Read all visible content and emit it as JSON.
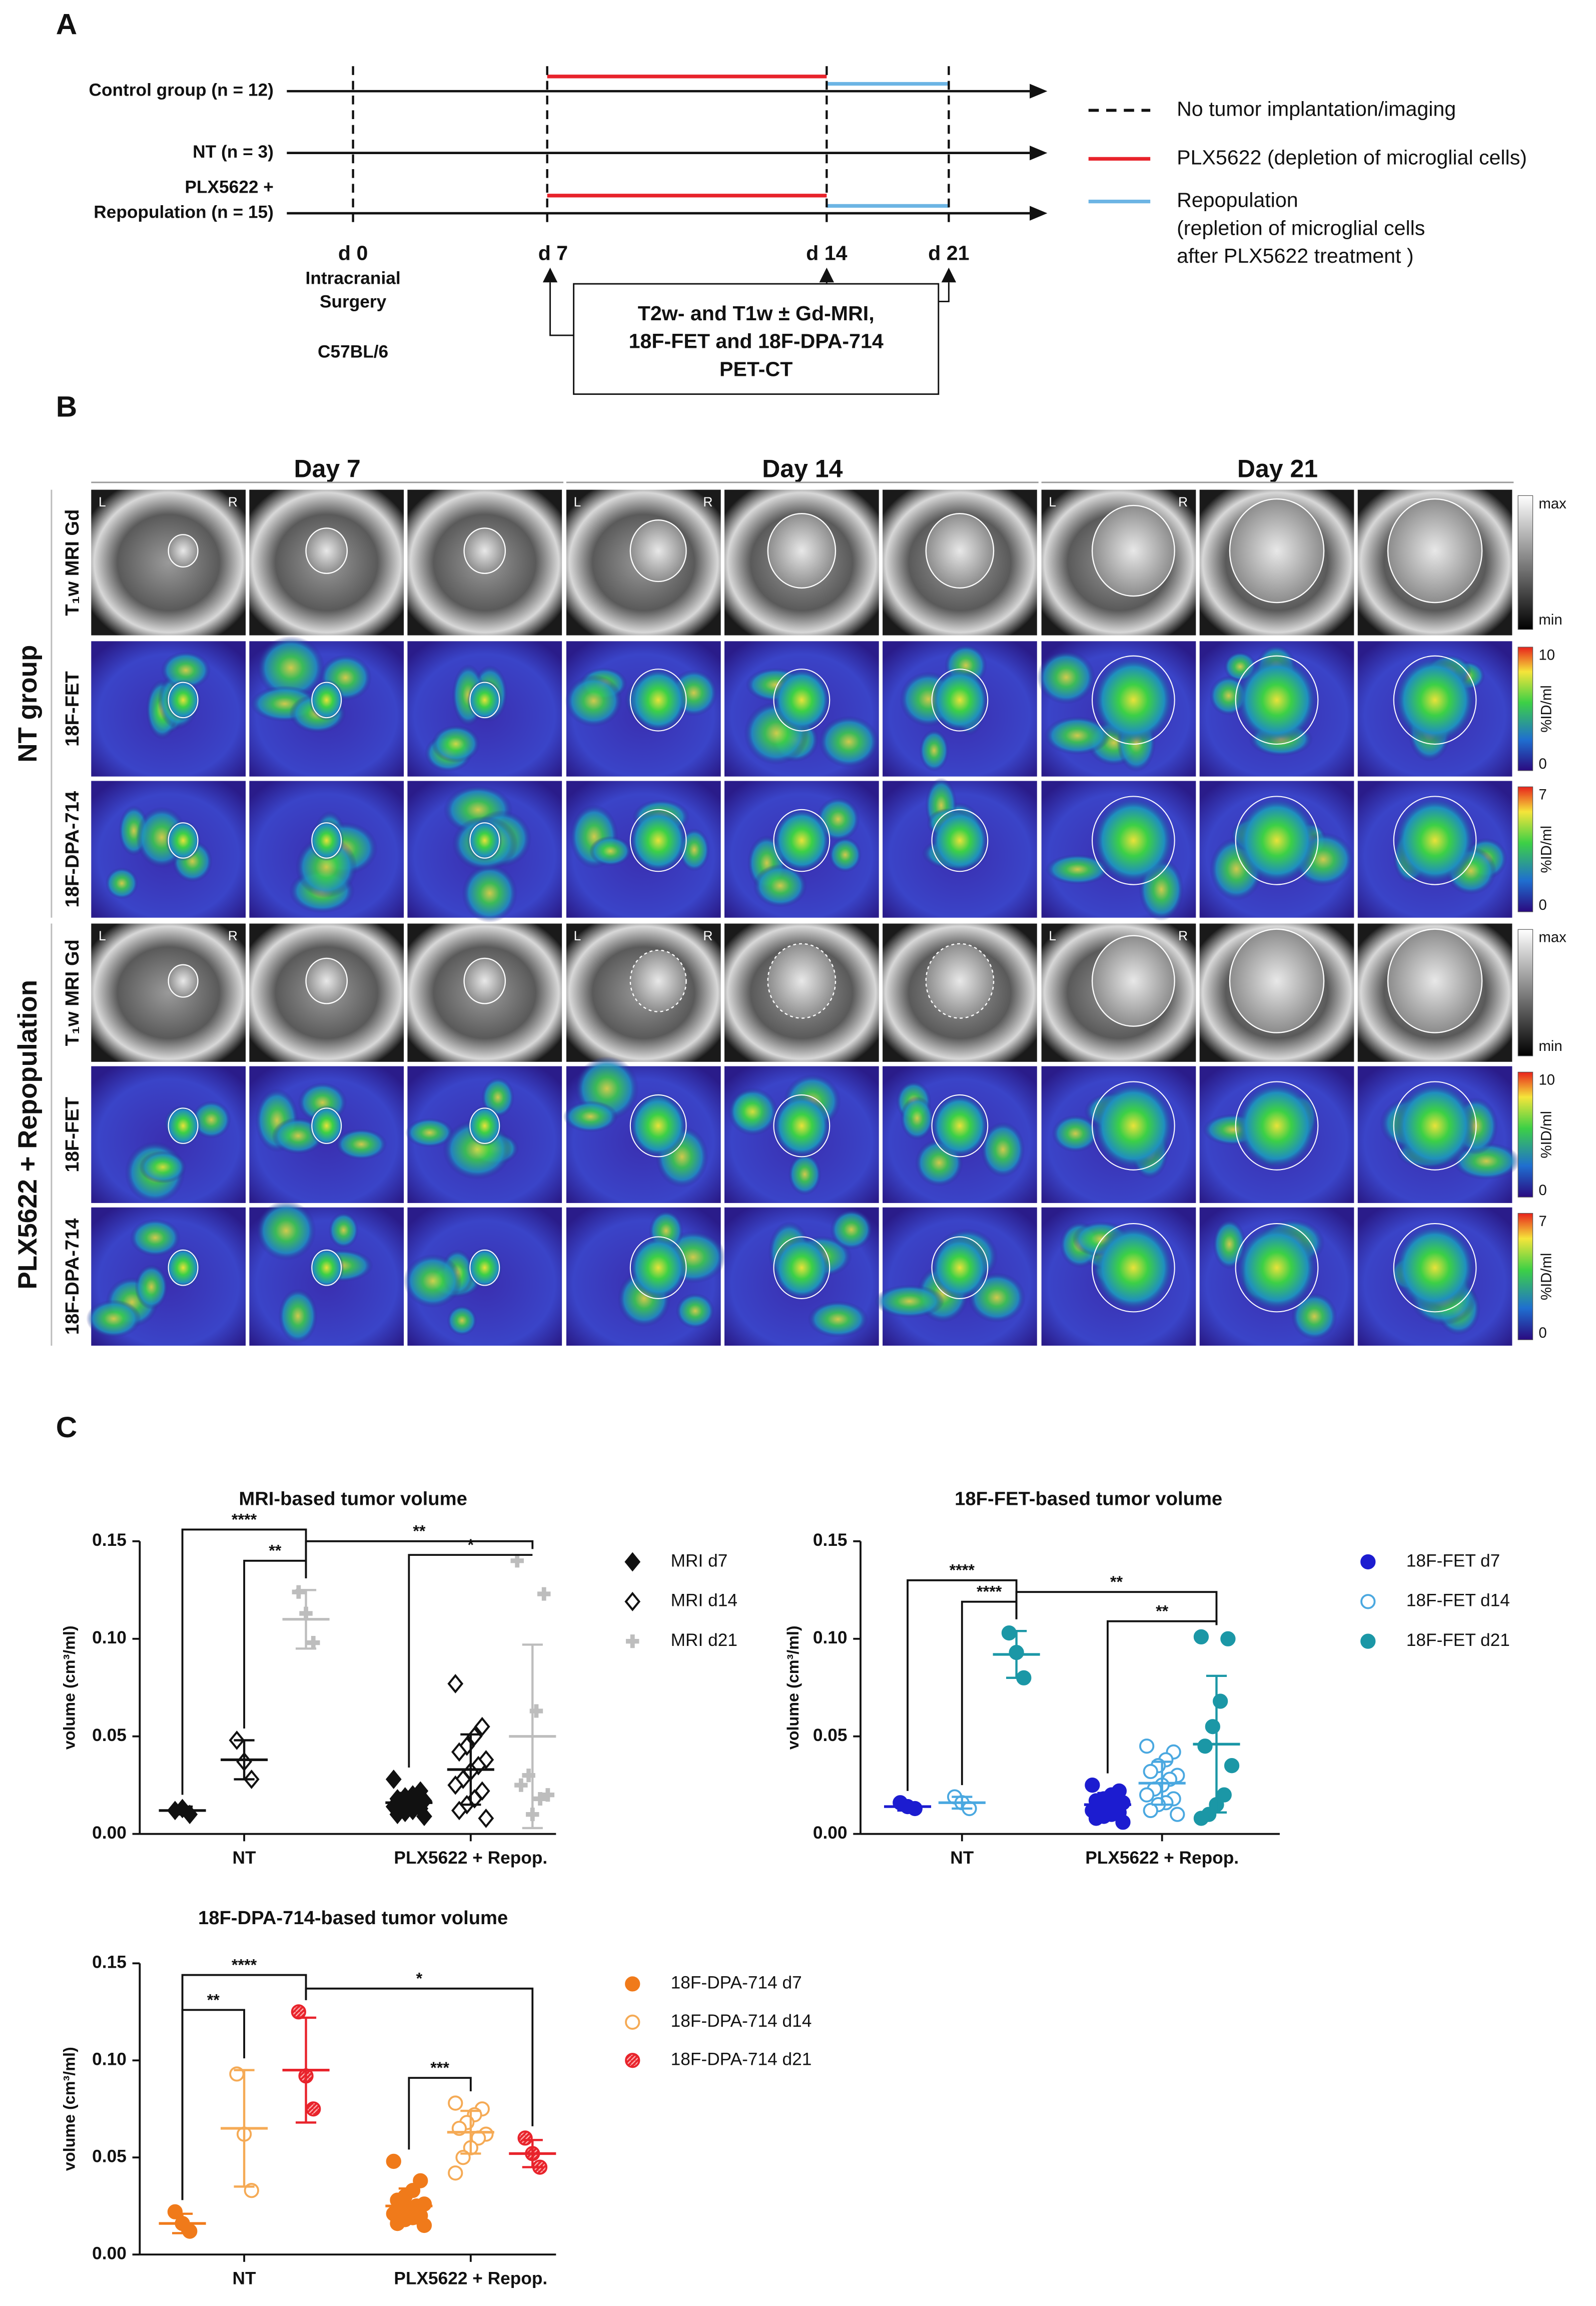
{
  "panel_a": {
    "label": "A",
    "rows": [
      [
        "Control group  (n = 12)"
      ],
      [
        "NT (n = 3)"
      ],
      [
        "PLX5622 +",
        "Repopulation (n = 15)"
      ]
    ],
    "timepoints": [
      "d 0",
      "d 7",
      "d 14",
      "d 21"
    ],
    "surgery": [
      "Intracranial",
      "Surgery"
    ],
    "strain": "C57BL/6",
    "imaging": [
      "T2w- and T1w ± Gd-MRI,",
      "18F-FET and 18F-DPA-714",
      "PET-CT"
    ],
    "legend": [
      {
        "lines": [
          "No tumor implantation/imaging"
        ],
        "color": "#111111",
        "dashed": true
      },
      {
        "lines": [
          "PLX5622 (depletion of microglial cells)"
        ],
        "color": "#e8232b",
        "dashed": false
      },
      {
        "lines": [
          "Repopulation",
          "(repletion of microglial cells",
          "after PLX5622 treatment )"
        ],
        "color": "#6cb4e4",
        "dashed": false
      }
    ]
  },
  "panel_b": {
    "label": "B",
    "days": [
      "Day 7",
      "Day 14",
      "Day 21"
    ],
    "groups": [
      "NT group",
      "PLX5622 + Repopulation"
    ],
    "rows": [
      "T₁w MRI Gd",
      "18F-FET",
      "18F-DPA-714"
    ],
    "orientation": [
      "L",
      "R"
    ],
    "mri_scale": [
      "max",
      "min"
    ],
    "fet_scale": {
      "top": "10",
      "bottom": "0",
      "unit": "%ID/ml"
    },
    "dpa_scale": {
      "top": "7",
      "bottom": "0",
      "unit": "%ID/ml"
    }
  },
  "panel_c": {
    "label": "C"
  },
  "chart_data": [
    {
      "type": "scatter",
      "title": "MRI-based tumor volume",
      "ylabel": "volume (cm³/ml)",
      "categories": [
        "NT",
        "PLX5622 + Repop."
      ],
      "ylim": [
        0,
        0.15
      ],
      "yticks": [
        {
          "value": 0,
          "label": "0.00"
        },
        0.05,
        {
          "value": 0.1,
          "label": "0.10"
        },
        0.15
      ],
      "series": [
        {
          "name": "MRI d7",
          "color": "#111111",
          "marker": "diamond",
          "values": [
            [
              0.012,
              0.013,
              0.01
            ],
            [
              0.028,
              0.022,
              0.02,
              0.019,
              0.018,
              0.017,
              0.016,
              0.016,
              0.015,
              0.014,
              0.013,
              0.012,
              0.011,
              0.01,
              0.009
            ]
          ],
          "mean": [
            0.012,
            0.016
          ],
          "sd": [
            0.002,
            0.005
          ]
        },
        {
          "name": "MRI d14",
          "color": "#111111",
          "marker": "diamond-open",
          "values": [
            [
              0.048,
              0.037,
              0.028
            ],
            [
              0.077,
              0.055,
              0.05,
              0.045,
              0.042,
              0.038,
              0.035,
              0.032,
              0.028,
              0.025,
              0.022,
              0.018,
              0.015,
              0.012,
              0.008
            ]
          ],
          "mean": [
            0.038,
            0.033
          ],
          "sd": [
            0.01,
            0.018
          ]
        },
        {
          "name": "MRI d21",
          "color": "#bdbdbd",
          "marker": "plus",
          "values": [
            [
              0.124,
              0.113,
              0.098
            ],
            [
              0.14,
              0.123,
              0.063,
              0.03,
              0.025,
              0.02,
              0.018,
              0.01
            ]
          ],
          "mean": [
            0.11,
            0.05
          ],
          "sd": [
            0.015,
            0.047
          ]
        }
      ],
      "significance": [
        {
          "label": "****",
          "from": [
            0,
            0
          ],
          "to": [
            2,
            0
          ],
          "y": 0.156
        },
        {
          "label": "**",
          "from": [
            1,
            0
          ],
          "to": [
            2,
            0
          ],
          "y": 0.14
        },
        {
          "label": "**",
          "from": [
            2,
            0
          ],
          "to": [
            2,
            1
          ],
          "y": 0.15
        },
        {
          "label": "*",
          "from": [
            0,
            1
          ],
          "to": [
            2,
            1
          ],
          "y": 0.143
        }
      ]
    },
    {
      "type": "scatter",
      "title": "18F-FET-based tumor volume",
      "ylabel": "volume (cm³/ml)",
      "categories": [
        "NT",
        "PLX5622 + Repop."
      ],
      "ylim": [
        0,
        0.15
      ],
      "yticks": [
        {
          "value": 0,
          "label": "0.00"
        },
        0.05,
        {
          "value": 0.1,
          "label": "0.10"
        },
        0.15
      ],
      "series": [
        {
          "name": "18F-FET d7",
          "color": "#1c1cd0",
          "marker": "circle",
          "values": [
            [
              0.016,
              0.014,
              0.013
            ],
            [
              0.025,
              0.022,
              0.02,
              0.018,
              0.017,
              0.016,
              0.015,
              0.014,
              0.013,
              0.012,
              0.011,
              0.01,
              0.009,
              0.008,
              0.006
            ]
          ],
          "mean": [
            0.014,
            0.015
          ],
          "sd": [
            0.002,
            0.006
          ]
        },
        {
          "name": "18F-FET d14",
          "color": "#4aa8e0",
          "marker": "circle-open",
          "values": [
            [
              0.019,
              0.016,
              0.013
            ],
            [
              0.045,
              0.042,
              0.038,
              0.035,
              0.032,
              0.03,
              0.028,
              0.025,
              0.023,
              0.02,
              0.018,
              0.016,
              0.015,
              0.012,
              0.01
            ]
          ],
          "mean": [
            0.016,
            0.026
          ],
          "sd": [
            0.003,
            0.011
          ]
        },
        {
          "name": "18F-FET d21",
          "color": "#1b97a6",
          "marker": "circle",
          "values": [
            [
              0.103,
              0.093,
              0.08
            ],
            [
              0.101,
              0.1,
              0.068,
              0.055,
              0.045,
              0.035,
              0.02,
              0.015,
              0.01,
              0.008
            ]
          ],
          "mean": [
            0.092,
            0.046
          ],
          "sd": [
            0.012,
            0.035
          ]
        }
      ],
      "significance": [
        {
          "label": "****",
          "from": [
            0,
            0
          ],
          "to": [
            2,
            0
          ],
          "y": 0.13
        },
        {
          "label": "****",
          "from": [
            1,
            0
          ],
          "to": [
            2,
            0
          ],
          "y": 0.119
        },
        {
          "label": "**",
          "from": [
            2,
            0
          ],
          "to": [
            2,
            1
          ],
          "y": 0.124
        },
        {
          "label": "**",
          "from": [
            0,
            1
          ],
          "to": [
            2,
            1
          ],
          "y": 0.109
        }
      ]
    },
    {
      "type": "scatter",
      "title": "18F-DPA-714-based tumor volume",
      "ylabel": "volume (cm³/ml)",
      "categories": [
        "NT",
        "PLX5622 + Repop."
      ],
      "ylim": [
        0,
        0.15
      ],
      "yticks": [
        {
          "value": 0,
          "label": "0.00"
        },
        0.05,
        {
          "value": 0.1,
          "label": "0.10"
        },
        0.15
      ],
      "series": [
        {
          "name": "18F-DPA-714 d7",
          "color": "#f07a1a",
          "marker": "circle",
          "values": [
            [
              0.022,
              0.016,
              0.012
            ],
            [
              0.048,
              0.038,
              0.033,
              0.03,
              0.028,
              0.026,
              0.025,
              0.024,
              0.022,
              0.021,
              0.02,
              0.019,
              0.018,
              0.016,
              0.015
            ]
          ],
          "mean": [
            0.016,
            0.025
          ],
          "sd": [
            0.005,
            0.009
          ]
        },
        {
          "name": "18F-DPA-714 d14",
          "color": "#f5aa55",
          "marker": "circle-open",
          "values": [
            [
              0.093,
              0.062,
              0.033
            ],
            [
              0.078,
              0.075,
              0.072,
              0.068,
              0.065,
              0.062,
              0.06,
              0.055,
              0.05,
              0.042
            ]
          ],
          "mean": [
            0.065,
            0.063
          ],
          "sd": [
            0.03,
            0.011
          ]
        },
        {
          "name": "18F-DPA-714 d21",
          "color": "#e8232b",
          "marker": "circle-hatched",
          "values": [
            [
              0.125,
              0.092,
              0.075
            ],
            [
              0.06,
              0.052,
              0.045
            ]
          ],
          "mean": [
            0.095,
            0.052
          ],
          "sd": [
            0.027,
            0.007
          ]
        }
      ],
      "significance": [
        {
          "label": "**",
          "from": [
            0,
            0
          ],
          "to": [
            1,
            0
          ],
          "y": 0.126
        },
        {
          "label": "****",
          "from": [
            0,
            0
          ],
          "to": [
            2,
            0
          ],
          "y": 0.144
        },
        {
          "label": "*",
          "from": [
            2,
            0
          ],
          "to": [
            2,
            1
          ],
          "y": 0.137
        },
        {
          "label": "***",
          "from": [
            0,
            1
          ],
          "to": [
            1,
            1
          ],
          "y": 0.091
        }
      ]
    }
  ]
}
